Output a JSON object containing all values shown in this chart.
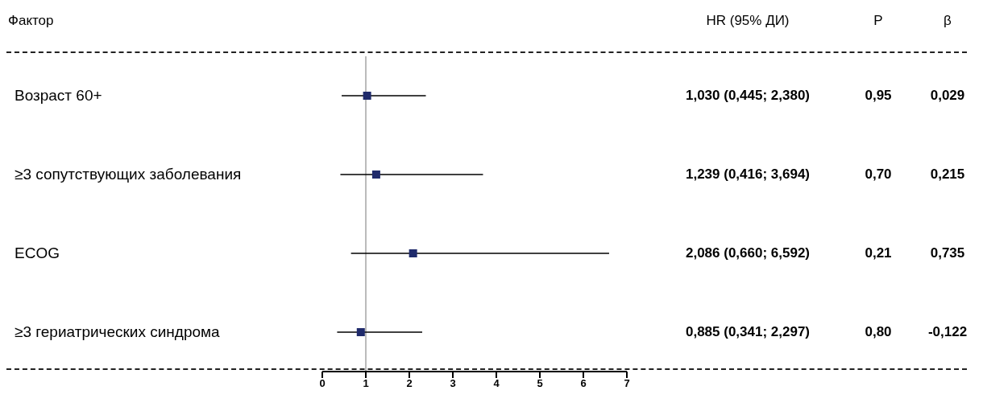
{
  "chart_data": {
    "type": "scatter",
    "orientation": "horizontal",
    "ylabel": "Фактор",
    "categories": [
      "Возраст 60+",
      "≥3 сопутствующих заболевания",
      "ECOG",
      "≥3 гериатрических синдрома"
    ],
    "values": [
      1.03,
      1.239,
      2.086,
      0.885
    ],
    "errors": [
      [
        0.445,
        2.38
      ],
      [
        0.416,
        3.694
      ],
      [
        0.66,
        6.592
      ],
      [
        0.341,
        2.297
      ]
    ],
    "value_labels": [
      "1,030 (0,445; 2,380)",
      "1,239 (0,416; 3,694)",
      "2,086 (0,660; 6,592)",
      "0,885 (0,341; 2,297)"
    ],
    "color": "#1f2a6b",
    "marker": "square",
    "grid": false,
    "legend": false,
    "tick_labels": "x",
    "xlim": [
      0,
      7
    ],
    "xticks": [
      0,
      1,
      2,
      3,
      4,
      5,
      6,
      7
    ],
    "ref_lines": [
      {
        "axis": "x",
        "value": 1,
        "color": "#bbbbbb"
      }
    ],
    "annotations": [
      "HR (95% ДИ)",
      "P",
      "β",
      "0,95",
      "0,029",
      "0,70",
      "0,215",
      "0,21",
      "0,735",
      "0,80",
      "-0,122"
    ]
  }
}
